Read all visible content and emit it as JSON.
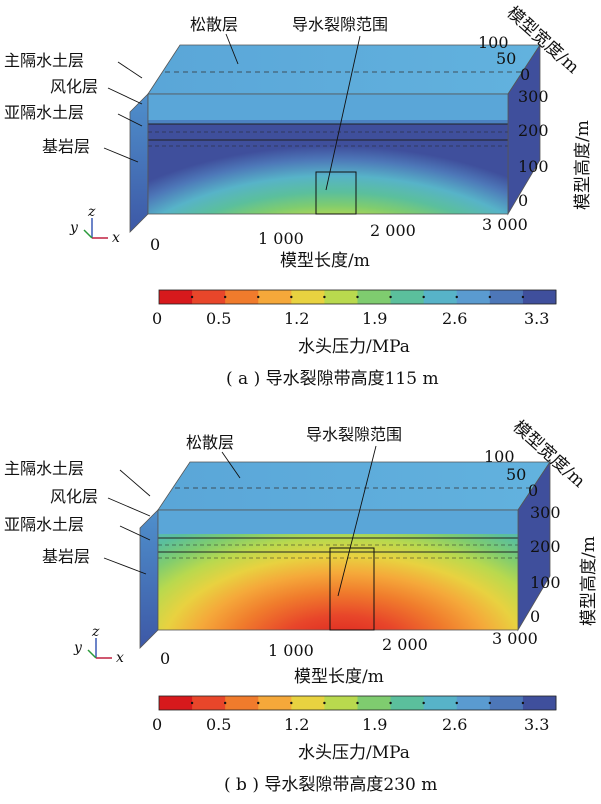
{
  "panels": [
    {
      "caption": "( a ) 导水裂隙带高度115 m",
      "fracture_height_m": 115,
      "layers": [
        "松散层",
        "主隔水土层",
        "风化层",
        "亚隔水土层",
        "基岩层"
      ],
      "fracture_label": "导水裂隙范围",
      "length_axis": {
        "label": "模型长度/m",
        "ticks": [
          "0",
          "1 000",
          "2 000",
          "3 000"
        ]
      },
      "height_axis": {
        "label": "模型高度/m",
        "ticks": [
          "0",
          "100",
          "200",
          "300"
        ]
      },
      "width_axis": {
        "label": "模型宽度/m",
        "ticks": [
          "100",
          "50",
          "0"
        ]
      },
      "colorbar": {
        "label": "水头压力/MPa",
        "ticks": [
          "0",
          "0.5",
          "1.2",
          "1.9",
          "2.6",
          "3.3"
        ],
        "colors": [
          "#d7191c",
          "#e8462a",
          "#f07b2c",
          "#f5a83a",
          "#e8d240",
          "#b9d94e",
          "#7fcc6f",
          "#5bbf9c",
          "#57b3c8",
          "#5a9bd0",
          "#4d77b8",
          "#3f4f9c"
        ]
      },
      "axes_triad": {
        "z": "z",
        "y": "y",
        "x": "x"
      }
    },
    {
      "caption": "( b ) 导水裂隙带高度230 m",
      "fracture_height_m": 230,
      "layers": [
        "松散层",
        "主隔水土层",
        "风化层",
        "亚隔水土层",
        "基岩层"
      ],
      "fracture_label": "导水裂隙范围",
      "length_axis": {
        "label": "模型长度/m",
        "ticks": [
          "0",
          "1 000",
          "2 000",
          "3 000"
        ]
      },
      "height_axis": {
        "label": "模型高度/m",
        "ticks": [
          "0",
          "100",
          "200",
          "300"
        ]
      },
      "width_axis": {
        "label": "模型宽度/m",
        "ticks": [
          "100",
          "50",
          "0"
        ]
      },
      "colorbar": {
        "label": "水头压力/MPa",
        "ticks": [
          "0",
          "0.5",
          "1.2",
          "1.9",
          "2.6",
          "3.3"
        ],
        "colors": [
          "#d7191c",
          "#e8462a",
          "#f07b2c",
          "#f5a83a",
          "#e8d240",
          "#b9d94e",
          "#7fcc6f",
          "#5bbf9c",
          "#57b3c8",
          "#5a9bd0",
          "#4d77b8",
          "#3f4f9c"
        ]
      },
      "axes_triad": {
        "z": "z",
        "y": "y",
        "x": "x"
      }
    }
  ]
}
